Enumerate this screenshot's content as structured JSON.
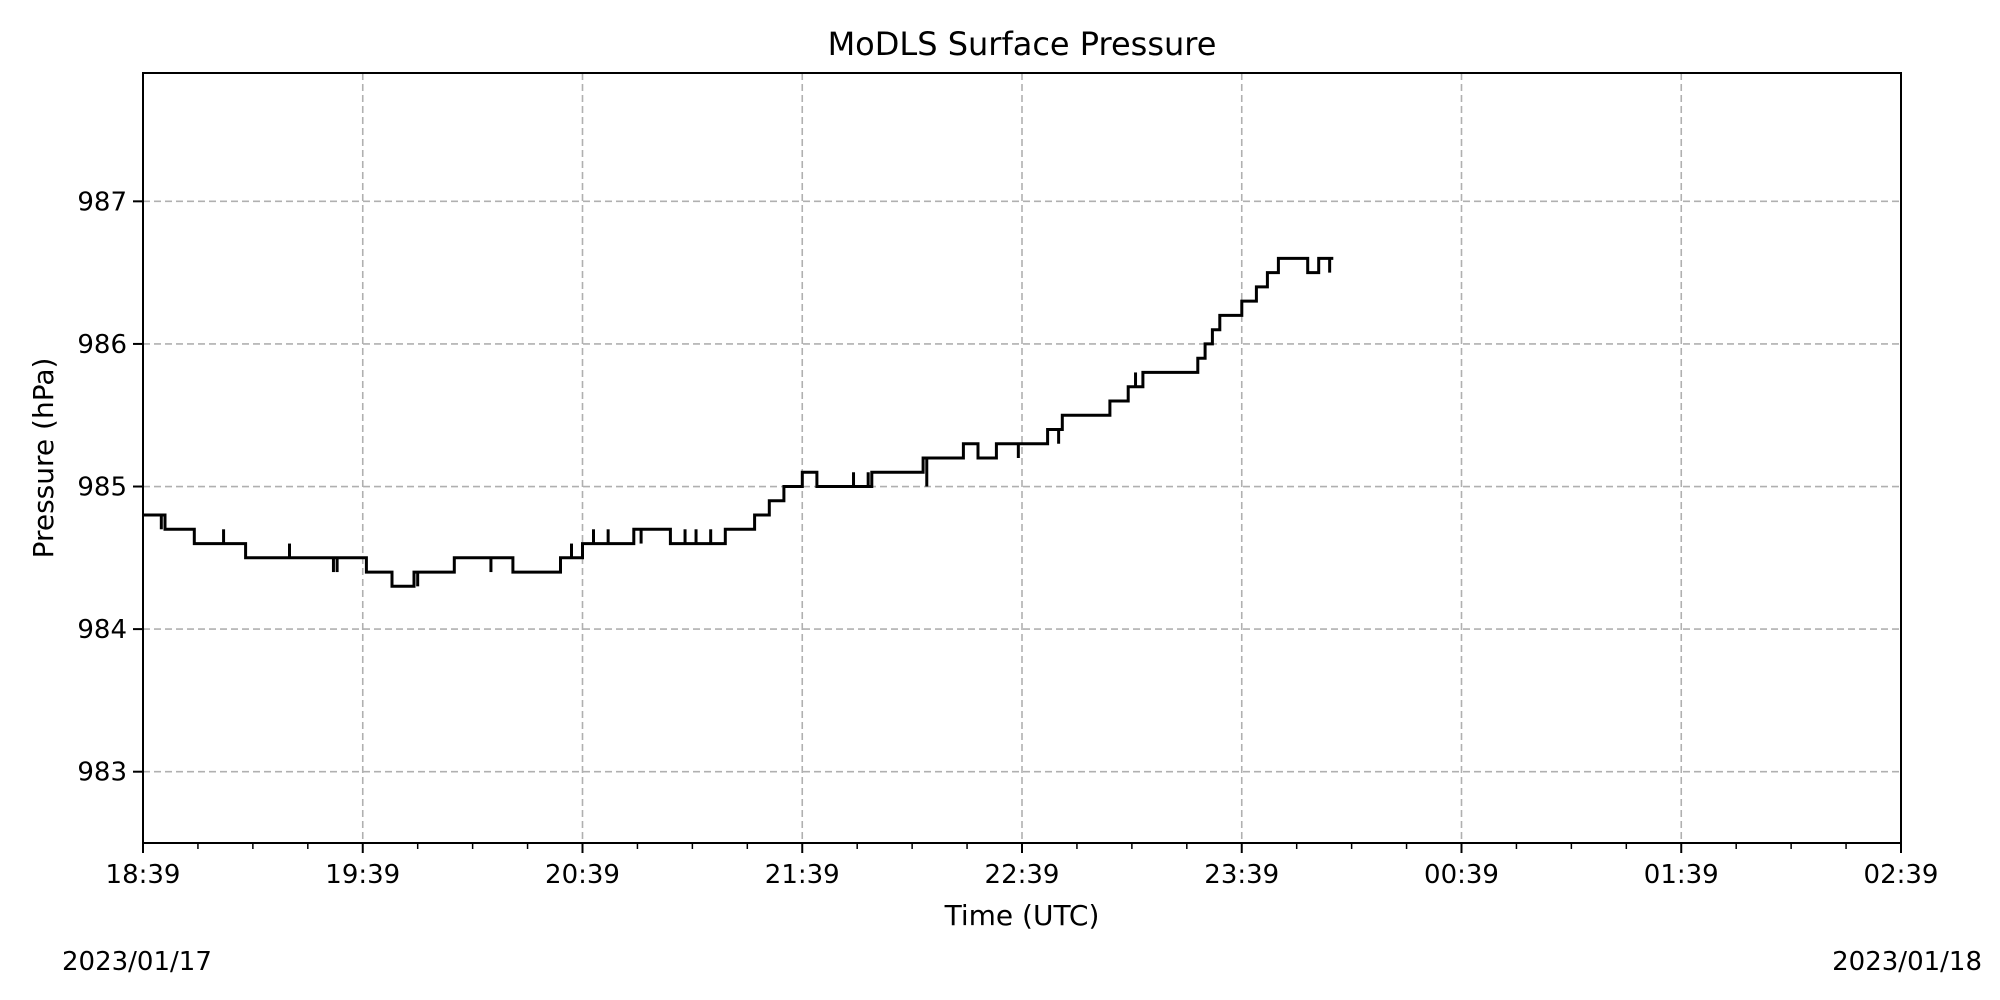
{
  "chart_data": {
    "type": "line",
    "title": "MoDLS Surface Pressure",
    "xlabel": "Time (UTC)",
    "ylabel": "Pressure (hPa)",
    "x_range": [
      "2023-01-17 18:39",
      "2023-01-18 02:39"
    ],
    "ylim": [
      982.5,
      987.9
    ],
    "x_tick_labels": [
      "18:39",
      "19:39",
      "20:39",
      "21:39",
      "22:39",
      "23:39",
      "00:39",
      "01:39",
      "02:39"
    ],
    "y_ticks": [
      983,
      984,
      985,
      986,
      987
    ],
    "date_labels": {
      "start": "2023/01/17",
      "end": "2023/01/18"
    },
    "grid": true,
    "line_color": "#000000",
    "series": [
      {
        "style": "step",
        "x": [
          "2023-01-17 18:39",
          "2023-01-17 18:45",
          "2023-01-17 18:53",
          "2023-01-17 19:07",
          "2023-01-17 19:40",
          "2023-01-17 19:47",
          "2023-01-17 19:53",
          "2023-01-17 20:04",
          "2023-01-17 20:20",
          "2023-01-17 20:33",
          "2023-01-17 20:39",
          "2023-01-17 20:53",
          "2023-01-17 21:03",
          "2023-01-17 21:18",
          "2023-01-17 21:26",
          "2023-01-17 21:30",
          "2023-01-17 21:34",
          "2023-01-17 21:39",
          "2023-01-17 21:43",
          "2023-01-17 21:58",
          "2023-01-17 22:12",
          "2023-01-17 22:23",
          "2023-01-17 22:27",
          "2023-01-17 22:32",
          "2023-01-17 22:46",
          "2023-01-17 22:50",
          "2023-01-17 23:03",
          "2023-01-17 23:08",
          "2023-01-17 23:12",
          "2023-01-17 23:27",
          "2023-01-17 23:29",
          "2023-01-17 23:31",
          "2023-01-17 23:33",
          "2023-01-17 23:35",
          "2023-01-17 23:39",
          "2023-01-17 23:43",
          "2023-01-17 23:46",
          "2023-01-17 23:49",
          "2023-01-17 23:53",
          "2023-01-17 23:57",
          "2023-01-18 00:00",
          "2023-01-18 00:04"
        ],
        "y": [
          984.8,
          984.7,
          984.6,
          984.5,
          984.4,
          984.3,
          984.4,
          984.5,
          984.4,
          984.5,
          984.6,
          984.7,
          984.6,
          984.7,
          984.8,
          984.9,
          985.0,
          985.1,
          985.0,
          985.1,
          985.2,
          985.3,
          985.2,
          985.3,
          985.4,
          985.5,
          985.6,
          985.7,
          985.8,
          985.9,
          986.0,
          986.1,
          986.2,
          986.2,
          986.3,
          986.4,
          986.5,
          986.6,
          986.6,
          986.5,
          986.6,
          986.6
        ]
      }
    ],
    "spikes": [
      {
        "t": "2023-01-17 18:44",
        "y": 984.7
      },
      {
        "t": "2023-01-17 19:01",
        "y": 984.7
      },
      {
        "t": "2023-01-17 19:19",
        "y": 984.6
      },
      {
        "t": "2023-01-17 19:31",
        "y": 984.4
      },
      {
        "t": "2023-01-17 19:32",
        "y": 984.4
      },
      {
        "t": "2023-01-17 19:54",
        "y": 984.3
      },
      {
        "t": "2023-01-17 20:14",
        "y": 984.4
      },
      {
        "t": "2023-01-17 20:17",
        "y": 984.5
      },
      {
        "t": "2023-01-17 20:36",
        "y": 984.6
      },
      {
        "t": "2023-01-17 20:42",
        "y": 984.7
      },
      {
        "t": "2023-01-17 20:46",
        "y": 984.7
      },
      {
        "t": "2023-01-17 20:50",
        "y": 984.6
      },
      {
        "t": "2023-01-17 20:55",
        "y": 984.6
      },
      {
        "t": "2023-01-17 21:07",
        "y": 984.7
      },
      {
        "t": "2023-01-17 21:10",
        "y": 984.7
      },
      {
        "t": "2023-01-17 21:14",
        "y": 984.7
      },
      {
        "t": "2023-01-17 21:20",
        "y": 984.7
      },
      {
        "t": "2023-01-17 21:49",
        "y": 985.0
      },
      {
        "t": "2023-01-17 21:52",
        "y": 985.0
      },
      {
        "t": "2023-01-17 21:53",
        "y": 985.1
      },
      {
        "t": "2023-01-17 21:57",
        "y": 985.1
      },
      {
        "t": "2023-01-17 22:13",
        "y": 985.0
      },
      {
        "t": "2023-01-17 22:36",
        "y": 985.3
      },
      {
        "t": "2023-01-17 22:38",
        "y": 985.2
      },
      {
        "t": "2023-01-17 22:49",
        "y": 985.3
      },
      {
        "t": "2023-01-17 23:10",
        "y": 985.8
      },
      {
        "t": "2023-01-17 23:41",
        "y": 986.3
      },
      {
        "t": "2023-01-18 00:03",
        "y": 986.5
      }
    ]
  }
}
